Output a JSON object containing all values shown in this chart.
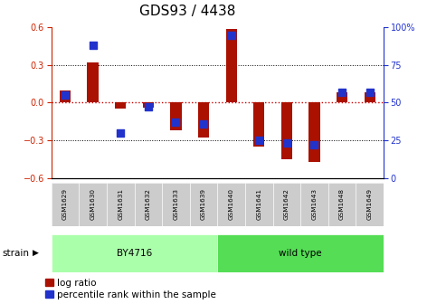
{
  "title": "GDS93 / 4438",
  "samples": [
    "GSM1629",
    "GSM1630",
    "GSM1631",
    "GSM1632",
    "GSM1633",
    "GSM1639",
    "GSM1640",
    "GSM1641",
    "GSM1642",
    "GSM1643",
    "GSM1648",
    "GSM1649"
  ],
  "log_ratio": [
    0.1,
    0.32,
    -0.05,
    -0.04,
    -0.22,
    -0.28,
    0.59,
    -0.35,
    -0.45,
    -0.47,
    0.08,
    0.08
  ],
  "percentile_rank": [
    55,
    88,
    30,
    47,
    37,
    36,
    95,
    25,
    23,
    22,
    57,
    57
  ],
  "ylim_left": [
    -0.6,
    0.6
  ],
  "ylim_right": [
    0,
    100
  ],
  "yticks_left": [
    -0.6,
    -0.3,
    0.0,
    0.3,
    0.6
  ],
  "yticks_right": [
    0,
    25,
    50,
    75,
    100
  ],
  "strain_groups": [
    {
      "label": "BY4716",
      "start": 0,
      "end": 6,
      "color": "#aaffaa"
    },
    {
      "label": "wild type",
      "start": 6,
      "end": 12,
      "color": "#55dd55"
    }
  ],
  "bar_color": "#aa1100",
  "dot_color": "#2233cc",
  "zero_line_color": "#cc0000",
  "bg_color": "#ffffff",
  "label_bg_color": "#cccccc",
  "title_fontsize": 11,
  "tick_fontsize": 7,
  "legend_fontsize": 7.5,
  "strain_label": "strain"
}
